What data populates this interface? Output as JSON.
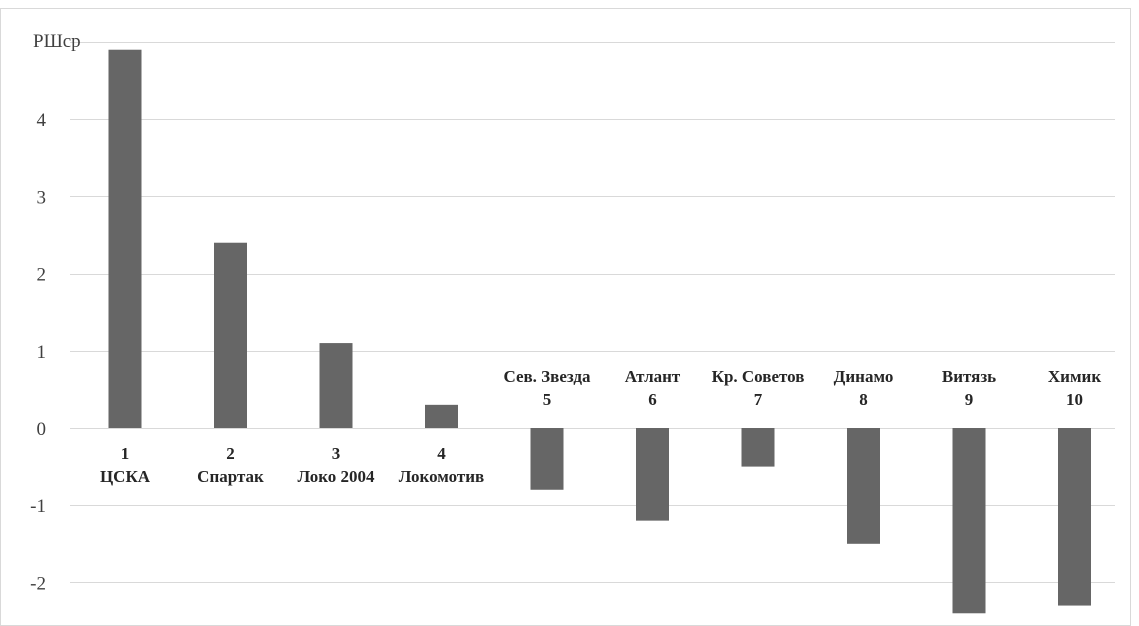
{
  "chart_data": {
    "type": "bar",
    "ylabel": "РШср",
    "ylim": [
      -2.4,
      4.9
    ],
    "yticks": [
      -2,
      -1,
      0,
      1,
      2,
      3,
      4
    ],
    "grid": true,
    "bar_color": "#666666",
    "categories": [
      {
        "rank": "1",
        "name": "ЦСКА",
        "value": 4.9
      },
      {
        "rank": "2",
        "name": "Спартак",
        "value": 2.4
      },
      {
        "rank": "3",
        "name": "Локо 2004",
        "value": 1.1
      },
      {
        "rank": "4",
        "name": "Локомотив",
        "value": 0.3
      },
      {
        "rank": "5",
        "name": "Сев. Звезда",
        "value": -0.8
      },
      {
        "rank": "6",
        "name": "Атлант",
        "value": -1.2
      },
      {
        "rank": "7",
        "name": "Кр. Советов",
        "value": -0.5
      },
      {
        "rank": "8",
        "name": "Динамо",
        "value": -1.5
      },
      {
        "rank": "9",
        "name": "Витязь",
        "value": -2.4
      },
      {
        "rank": "10",
        "name": "Химик",
        "value": -2.3
      }
    ]
  }
}
